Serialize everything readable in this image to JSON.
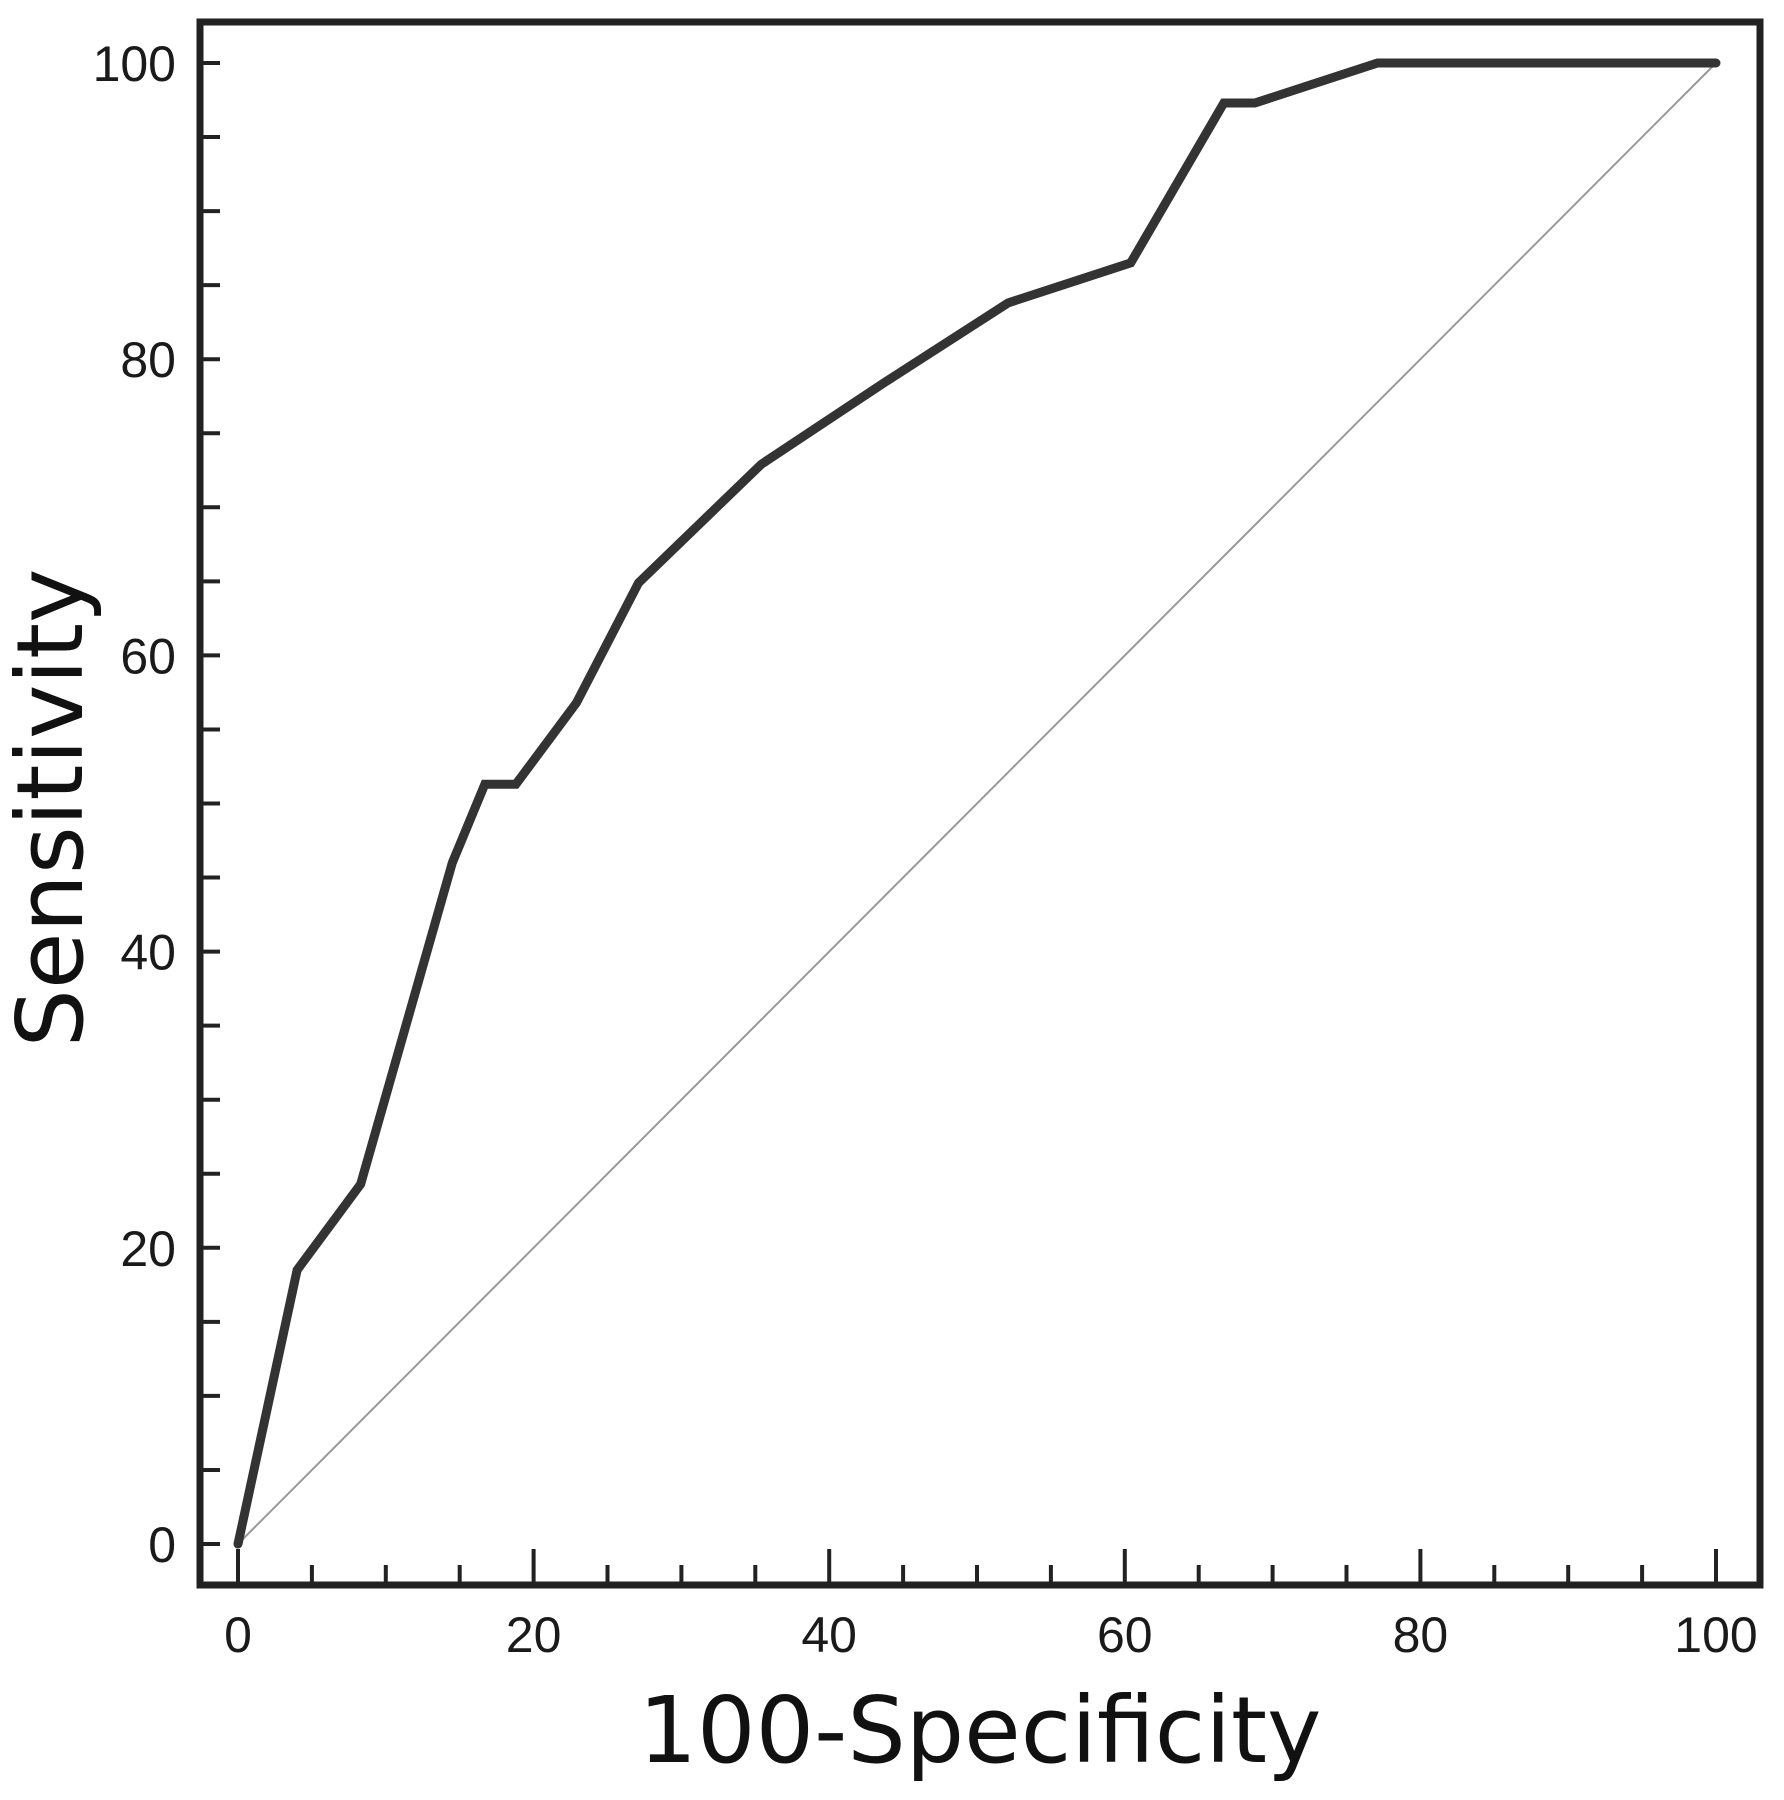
{
  "chart_data": {
    "type": "line",
    "title": "",
    "xlabel": "100-Specificity",
    "ylabel": "Sensitivity",
    "xlim": [
      0,
      100
    ],
    "ylim": [
      0,
      100
    ],
    "x_ticks": [
      "0",
      "20",
      "40",
      "60",
      "80",
      "100"
    ],
    "y_ticks": [
      "0",
      "20",
      "40",
      "60",
      "80",
      "100"
    ],
    "x_minor_step": 5,
    "y_minor_step": 5,
    "grid": false,
    "legend": "none",
    "colors": {
      "curve": "#333333",
      "reference": "#9a9a9a",
      "frame": "#222222"
    },
    "series": [
      {
        "values": [
          {
            "x": 0,
            "y": 0
          },
          {
            "x": 4,
            "y": 18.5
          },
          {
            "x": 8.3,
            "y": 24.3
          },
          {
            "x": 14.5,
            "y": 46
          },
          {
            "x": 16.7,
            "y": 51.3
          },
          {
            "x": 18.8,
            "y": 51.3
          },
          {
            "x": 22.9,
            "y": 56.8
          },
          {
            "x": 27.1,
            "y": 64.9
          },
          {
            "x": 35.4,
            "y": 72.9
          },
          {
            "x": 43.7,
            "y": 78.4
          },
          {
            "x": 52.1,
            "y": 83.8
          },
          {
            "x": 60.4,
            "y": 86.5
          },
          {
            "x": 66.7,
            "y": 97.3
          },
          {
            "x": 68.8,
            "y": 97.3
          },
          {
            "x": 77.1,
            "y": 100
          },
          {
            "x": 100,
            "y": 100
          }
        ]
      },
      {
        "values": [
          {
            "x": 0,
            "y": 0
          },
          {
            "x": 100,
            "y": 100
          }
        ]
      }
    ]
  }
}
